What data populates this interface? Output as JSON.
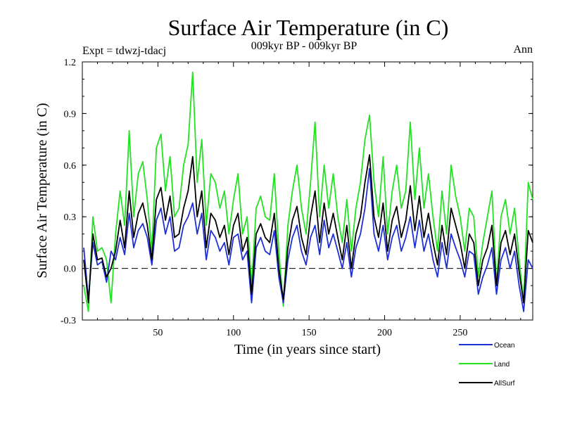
{
  "chart_data": {
    "type": "line",
    "title": "Surface Air Temperature (in C)",
    "subtitle_left": "Expt = tdwzj-tdacj",
    "subtitle_center": "009kyr BP - 009kyr BP",
    "subtitle_right": "Ann",
    "xlabel": "Time (in years since start)",
    "ylabel": "Surface Air Temperature (in C)",
    "xlim": [
      0,
      298
    ],
    "ylim": [
      -0.3,
      1.2
    ],
    "x_ticks": [
      50,
      100,
      150,
      200,
      250
    ],
    "x_tick_labels": [
      "50",
      "100",
      "150",
      "200",
      "250"
    ],
    "y_ticks": [
      -0.3,
      0.0,
      0.3,
      0.6,
      0.9,
      1.2
    ],
    "y_tick_labels": [
      "-0.3",
      "0.0",
      "0.3",
      "0.6",
      "0.9",
      "1.2"
    ],
    "zero_line": "dashed",
    "legend_position": "below-right",
    "colors": {
      "Ocean": "#1f2fd6",
      "Land": "#22e222",
      "AllSurf": "#000000"
    },
    "x": [
      1,
      4,
      7,
      10,
      13,
      16,
      19,
      22,
      25,
      28,
      31,
      34,
      37,
      40,
      43,
      46,
      49,
      52,
      55,
      58,
      61,
      64,
      67,
      70,
      73,
      76,
      79,
      82,
      85,
      88,
      91,
      94,
      97,
      100,
      103,
      106,
      109,
      112,
      115,
      118,
      121,
      124,
      127,
      130,
      133,
      136,
      139,
      142,
      145,
      148,
      151,
      154,
      157,
      160,
      163,
      166,
      169,
      172,
      175,
      178,
      181,
      184,
      187,
      190,
      193,
      196,
      199,
      202,
      205,
      208,
      211,
      214,
      217,
      220,
      223,
      226,
      229,
      232,
      235,
      238,
      241,
      244,
      247,
      250,
      253,
      256,
      259,
      262,
      265,
      268,
      271,
      274,
      277,
      280,
      283,
      286,
      289,
      292,
      295,
      298
    ],
    "series": [
      {
        "name": "Ocean",
        "values": [
          0.12,
          -0.18,
          0.15,
          0.02,
          0.04,
          -0.08,
          0.1,
          0.05,
          0.18,
          0.08,
          0.32,
          0.12,
          0.22,
          0.26,
          0.18,
          0.02,
          0.28,
          0.35,
          0.2,
          0.3,
          0.1,
          0.12,
          0.25,
          0.3,
          0.38,
          0.2,
          0.32,
          0.05,
          0.22,
          0.18,
          0.1,
          0.15,
          0.02,
          0.18,
          0.2,
          0.05,
          0.1,
          -0.2,
          0.12,
          0.18,
          0.1,
          0.08,
          0.22,
          -0.05,
          -0.2,
          0.05,
          0.18,
          0.25,
          0.1,
          0.02,
          0.18,
          0.25,
          0.08,
          0.28,
          0.12,
          0.2,
          0.1,
          0.0,
          0.15,
          -0.05,
          0.12,
          0.2,
          0.35,
          0.58,
          0.2,
          0.1,
          0.25,
          0.05,
          0.18,
          0.25,
          0.1,
          0.18,
          0.3,
          0.12,
          0.28,
          0.1,
          0.2,
          0.05,
          -0.05,
          0.15,
          0.0,
          0.2,
          0.12,
          0.05,
          -0.05,
          0.1,
          0.08,
          -0.15,
          -0.05,
          0.02,
          0.12,
          -0.15,
          0.05,
          0.12,
          0.0,
          0.1,
          -0.1,
          -0.25,
          0.05,
          0.0
        ]
      },
      {
        "name": "Land",
        "values": [
          -0.1,
          -0.25,
          0.3,
          0.1,
          0.12,
          0.05,
          -0.2,
          0.2,
          0.45,
          0.25,
          0.8,
          0.3,
          0.55,
          0.62,
          0.4,
          0.1,
          0.7,
          0.78,
          0.45,
          0.65,
          0.3,
          0.35,
          0.6,
          0.72,
          1.14,
          0.5,
          0.75,
          0.25,
          0.55,
          0.5,
          0.35,
          0.45,
          0.2,
          0.4,
          0.55,
          0.2,
          0.3,
          -0.1,
          0.35,
          0.42,
          0.3,
          0.28,
          0.55,
          0.1,
          -0.22,
          0.25,
          0.45,
          0.6,
          0.35,
          0.2,
          0.5,
          0.85,
          0.3,
          0.6,
          0.35,
          0.55,
          0.3,
          0.15,
          0.4,
          0.1,
          0.35,
          0.5,
          0.75,
          0.89,
          0.5,
          0.3,
          0.65,
          0.2,
          0.45,
          0.6,
          0.35,
          0.45,
          0.85,
          0.4,
          0.7,
          0.35,
          0.55,
          0.3,
          0.1,
          0.45,
          0.2,
          0.6,
          0.42,
          0.3,
          0.1,
          0.35,
          0.3,
          -0.05,
          0.15,
          0.3,
          0.45,
          -0.1,
          0.3,
          0.4,
          0.2,
          0.35,
          0.05,
          -0.2,
          0.5,
          0.4
        ]
      },
      {
        "name": "AllSurf",
        "values": [
          0.05,
          -0.2,
          0.2,
          0.05,
          0.06,
          -0.05,
          0.0,
          0.1,
          0.28,
          0.12,
          0.45,
          0.18,
          0.32,
          0.38,
          0.25,
          0.05,
          0.4,
          0.47,
          0.28,
          0.42,
          0.18,
          0.2,
          0.35,
          0.45,
          0.65,
          0.3,
          0.45,
          0.12,
          0.32,
          0.28,
          0.18,
          0.25,
          0.08,
          0.25,
          0.32,
          0.1,
          0.18,
          -0.15,
          0.2,
          0.26,
          0.18,
          0.15,
          0.32,
          0.0,
          -0.18,
          0.12,
          0.28,
          0.36,
          0.18,
          0.08,
          0.3,
          0.45,
          0.15,
          0.38,
          0.2,
          0.32,
          0.18,
          0.05,
          0.25,
          0.0,
          0.2,
          0.3,
          0.5,
          0.66,
          0.3,
          0.18,
          0.38,
          0.1,
          0.28,
          0.36,
          0.18,
          0.28,
          0.48,
          0.22,
          0.42,
          0.18,
          0.32,
          0.15,
          0.02,
          0.25,
          0.08,
          0.35,
          0.25,
          0.15,
          0.0,
          0.2,
          0.15,
          -0.1,
          0.05,
          0.12,
          0.25,
          -0.1,
          0.15,
          0.22,
          0.08,
          0.2,
          -0.02,
          -0.2,
          0.22,
          0.15
        ]
      }
    ]
  }
}
